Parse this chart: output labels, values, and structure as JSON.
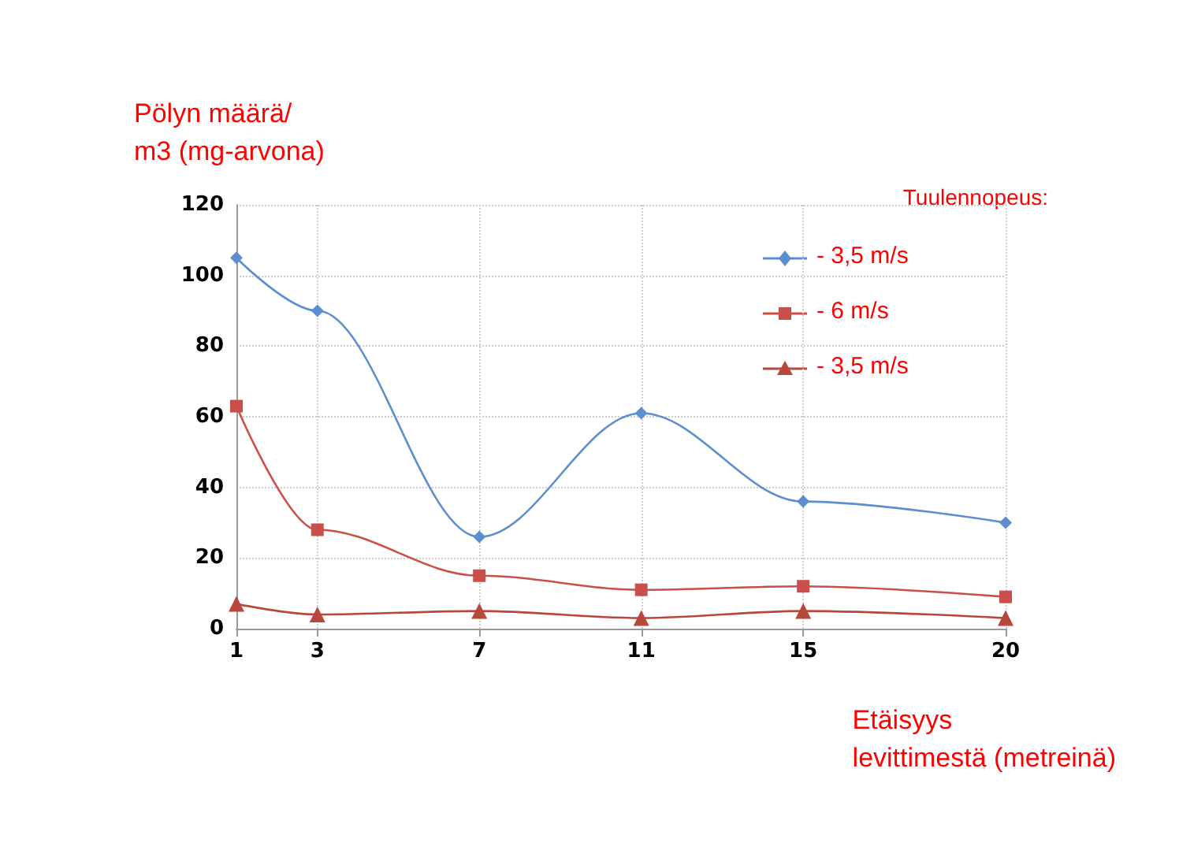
{
  "chart_data": {
    "type": "line",
    "ylabel": "Pölyn määrä/\nm3 (mg-arvona)",
    "xlabel": "Etäisyys\nlevittimestä (metreinä)",
    "legend_title": "Tuulennopeus:",
    "x": [
      1,
      3,
      7,
      11,
      15,
      20
    ],
    "series": [
      {
        "name": "- 3,5 m/s",
        "color": "#5b8fd0",
        "marker": "diamond",
        "values": [
          105,
          90,
          26,
          61,
          36,
          30
        ]
      },
      {
        "name": "- 6 m/s",
        "color": "#c9504a",
        "marker": "square",
        "values": [
          63,
          28,
          15,
          11,
          12,
          9
        ]
      },
      {
        "name": "- 3,5 m/s",
        "color": "#b8483c",
        "marker": "triangle",
        "values": [
          7,
          4,
          5,
          3,
          5,
          3
        ]
      }
    ],
    "xlim": [
      1,
      20
    ],
    "xticks": [
      1,
      3,
      7,
      11,
      15,
      20
    ],
    "ylim": [
      0,
      120
    ],
    "yticks": [
      0,
      20,
      40,
      60,
      80,
      100,
      120
    ],
    "grid": true,
    "legend": "top right"
  }
}
